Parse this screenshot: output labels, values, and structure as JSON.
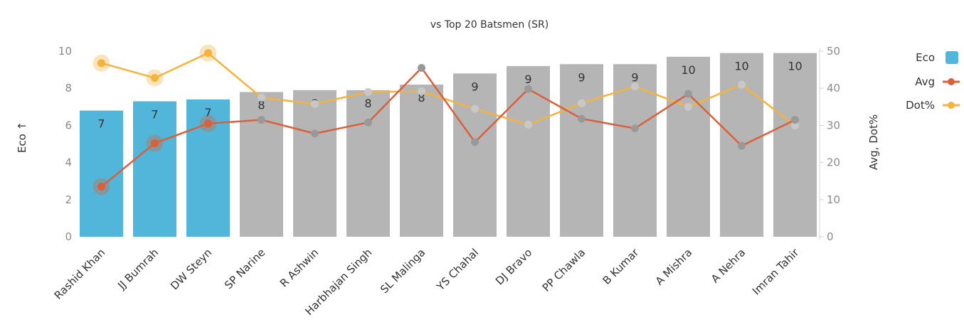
{
  "chart_data": {
    "type": "bar",
    "title": "vs Top 20 Batsmen (SR)",
    "categories": [
      "Rashid Khan",
      "JJ Bumrah",
      "DW Steyn",
      "SP Narine",
      "R Ashwin",
      "Harbhajan Singh",
      "SL Malinga",
      "YS Chahal",
      "DJ Bravo",
      "PP Chawla",
      "B Kumar",
      "A Mishra",
      "A Nehra",
      "Imran Tahir"
    ],
    "highlighted": [
      "Rashid Khan",
      "JJ Bumrah",
      "DW Steyn"
    ],
    "ylabel_left": "Eco ↑",
    "ylabel_right": "Avg, Dot%",
    "ylim_left": [
      0,
      10
    ],
    "ylim_right": [
      0,
      50
    ],
    "yticks_left": [
      0,
      2,
      4,
      6,
      8,
      10
    ],
    "yticks_right": [
      0,
      10,
      20,
      30,
      40,
      50
    ],
    "legend_position": "top-right",
    "series": [
      {
        "name": "Eco",
        "kind": "bar",
        "values": [
          6.8,
          7.3,
          7.4,
          7.8,
          7.9,
          7.9,
          8.2,
          8.8,
          9.2,
          9.3,
          9.3,
          9.7,
          9.9,
          9.9
        ],
        "labels": [
          "7",
          "7",
          "7",
          "8",
          "8",
          "8",
          "8",
          "9",
          "9",
          "9",
          "9",
          "10",
          "10",
          "10"
        ]
      },
      {
        "name": "Avg",
        "kind": "line",
        "values": [
          13.5,
          25.2,
          30.5,
          31.5,
          27.8,
          30.8,
          45.5,
          25.5,
          39.8,
          31.8,
          29.2,
          38.5,
          24.5,
          31.5
        ]
      },
      {
        "name": "Dot%",
        "kind": "line",
        "values": [
          46.8,
          42.8,
          49.5,
          37.5,
          35.8,
          39.0,
          39.2,
          34.5,
          30.2,
          36.0,
          40.5,
          35.0,
          41.0,
          30.0
        ]
      }
    ],
    "colors": {
      "bar_highlight": "#52b6da",
      "bar_default": "#b5b5b5",
      "avg": "#d9603a",
      "dot": "#f3b33d",
      "dimmed_marker": "#999999",
      "dimmed_dot_marker": "#c8c8c8"
    }
  }
}
